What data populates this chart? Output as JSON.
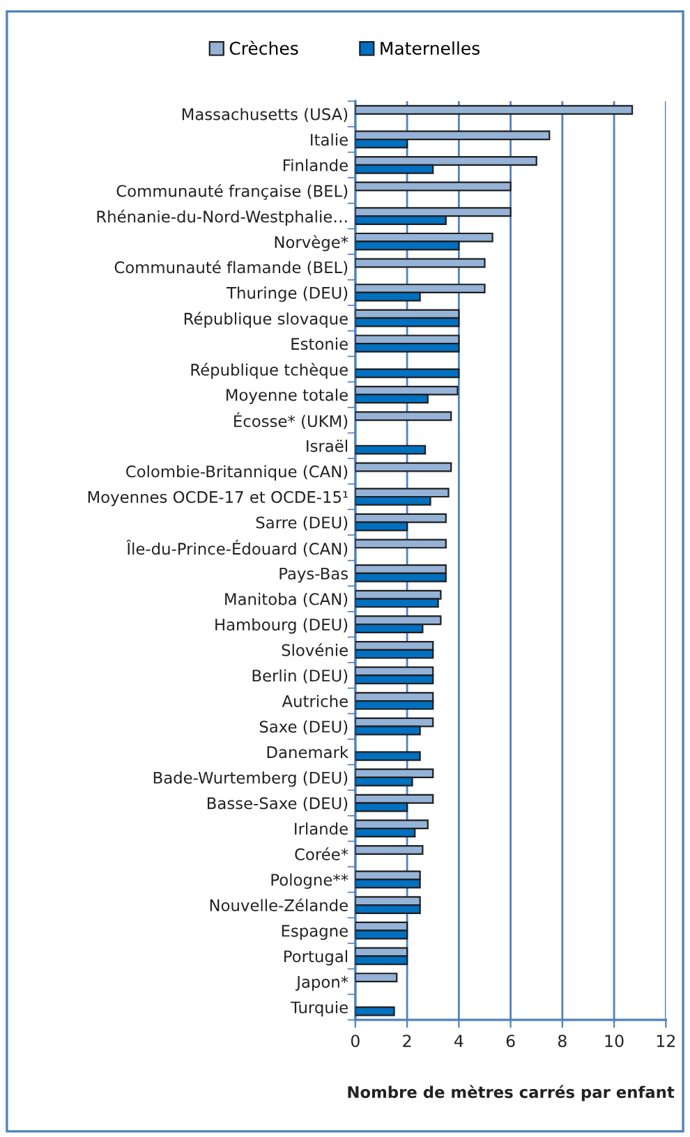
{
  "chart_data": {
    "type": "bar",
    "orientation": "horizontal",
    "xlabel": "Nombre de mètres carrés par enfant",
    "categories": [
      "Massachusetts (USA)",
      "Italie",
      "Finlande",
      "Communauté française (BEL)",
      "Rhénanie-du-Nord-Westphalie…",
      "Norvège*",
      "Communauté flamande (BEL)",
      "Thuringe (DEU)",
      "République slovaque",
      "Estonie",
      "République tchèque",
      "Moyenne totale",
      "Écosse* (UKM)",
      "Israël",
      "Colombie-Britannique (CAN)",
      "Moyennes OCDE-17 et OCDE-15¹",
      "Sarre (DEU)",
      "Île-du-Prince-Édouard (CAN)",
      "Pays-Bas",
      "Manitoba (CAN)",
      "Hambourg (DEU)",
      "Slovénie",
      "Berlin (DEU)",
      "Autriche",
      "Saxe (DEU)",
      "Danemark",
      "Bade-Wurtemberg (DEU)",
      "Basse-Saxe (DEU)",
      "Irlande",
      "Corée*",
      "Pologne**",
      "Nouvelle-Zélande",
      "Espagne",
      "Portugal",
      "Japon*",
      "Turquie"
    ],
    "series": [
      {
        "name": "Crèches",
        "color": "#95b3d7",
        "values": [
          10.7,
          7.5,
          7.0,
          6.0,
          6.0,
          5.3,
          5.0,
          5.0,
          4.0,
          4.0,
          null,
          3.95,
          3.7,
          null,
          3.7,
          3.6,
          3.5,
          3.5,
          3.5,
          3.3,
          3.3,
          3.0,
          3.0,
          3.0,
          3.0,
          null,
          3.0,
          3.0,
          2.8,
          2.6,
          2.5,
          2.5,
          2.0,
          2.0,
          1.6,
          null
        ]
      },
      {
        "name": "Maternelles",
        "color": "#0070c0",
        "values": [
          null,
          2.0,
          3.0,
          null,
          3.5,
          4.0,
          null,
          2.5,
          4.0,
          4.0,
          4.0,
          2.8,
          null,
          2.7,
          null,
          2.9,
          2.0,
          null,
          3.5,
          3.2,
          2.6,
          3.0,
          3.0,
          3.0,
          2.5,
          2.5,
          2.2,
          2.0,
          2.3,
          null,
          2.5,
          2.5,
          2.0,
          2.0,
          null,
          1.5
        ]
      }
    ],
    "xlim": [
      0,
      12
    ],
    "xticks": [
      0,
      2,
      4,
      6,
      8,
      10,
      12
    ],
    "grid": "x",
    "legend": "top"
  }
}
